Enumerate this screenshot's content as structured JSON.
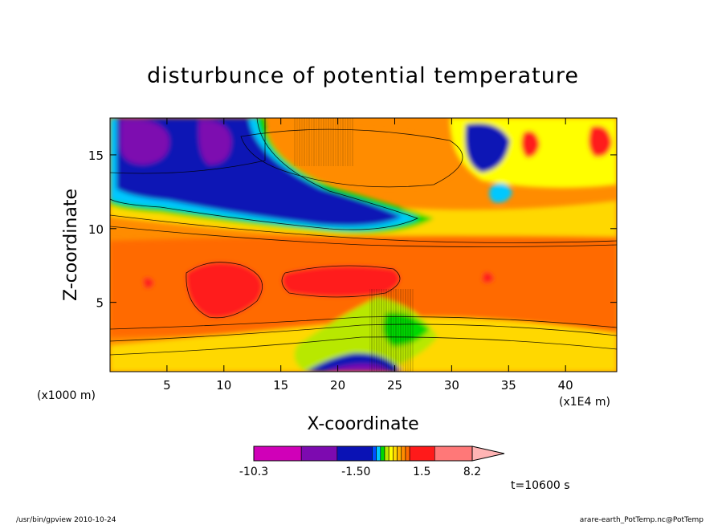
{
  "chart_data": {
    "type": "contour",
    "title": "disturbunce of potential temperature",
    "xlabel": "X-coordinate",
    "ylabel": "Z-coordinate",
    "x_unit": "(x1000 m)",
    "x_scale_note": "(x1E4 m)",
    "xlim": [
      0,
      44.5
    ],
    "ylim": [
      0.3,
      17.5
    ],
    "x_ticks": [
      5,
      10,
      15,
      20,
      25,
      30,
      35,
      40
    ],
    "y_ticks": [
      5,
      10,
      15
    ],
    "grid": false,
    "colorbar": {
      "levels": [
        -10.3,
        -7.5,
        -4.5,
        -1.5,
        -1.2,
        -0.9,
        -0.6,
        -0.3,
        0.3,
        0.6,
        0.9,
        1.2,
        1.5,
        4.5,
        8.2,
        9.5
      ],
      "colors": [
        "#d000b8",
        "#7d0ab0",
        "#0a12b5",
        "#0050ff",
        "#00c8ff",
        "#00d800",
        "#b8e800",
        "#ffff00",
        "#ffd800",
        "#ffb000",
        "#ff8c00",
        "#ff6a00",
        "#ff1a1a",
        "#ff7878",
        "#ffb4b4"
      ],
      "tick_labels": [
        "-10.3",
        "-1.50",
        "1.5",
        "8.2"
      ],
      "tick_values": [
        -10.3,
        -1.5,
        1.5,
        8.2
      ]
    },
    "time_label": "t=10600 s"
  },
  "footer": {
    "left": "/usr/bin/gpview  2010-10-24",
    "right": "arare-earth_PotTemp.nc@PotTemp"
  }
}
